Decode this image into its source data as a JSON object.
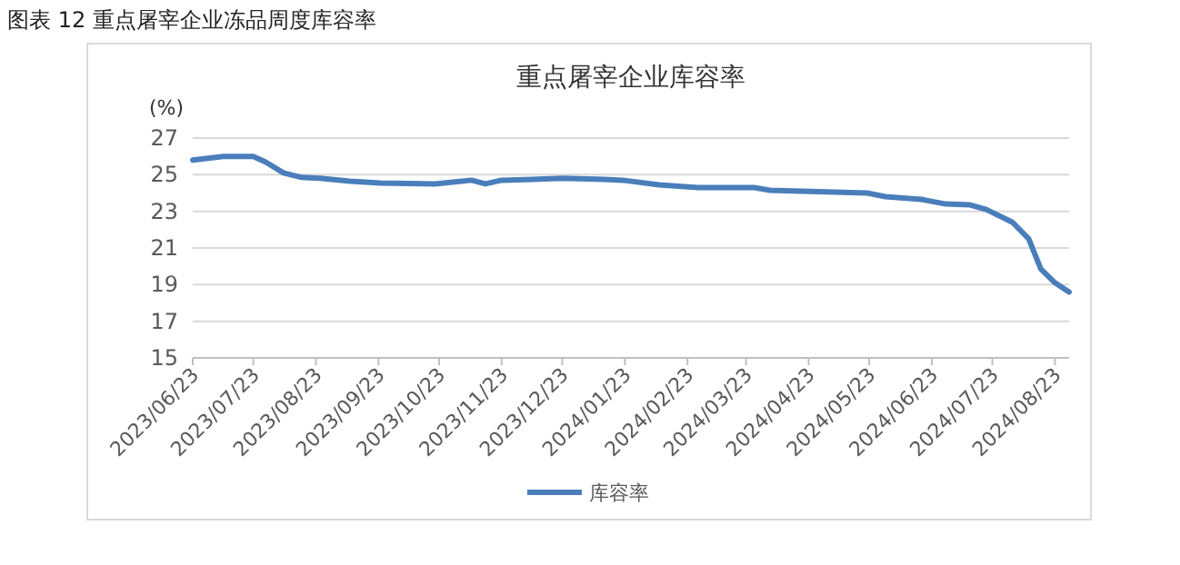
{
  "chart_data": {
    "type": "line",
    "title": "图表 12  重点屠宰企业冻品周度库容率",
    "subtitle": "重点屠宰企业库容率",
    "ylabel": "(%)",
    "xlim": [
      "2023-06-23",
      "2024-08-30"
    ],
    "xticks": [
      {
        "value": "2023-06-23",
        "label": "2023/06/23"
      },
      {
        "value": "2023-07-23",
        "label": "2023/07/23"
      },
      {
        "value": "2023-08-23",
        "label": "2023/08/23"
      },
      {
        "value": "2023-09-23",
        "label": "2023/09/23"
      },
      {
        "value": "2023-10-23",
        "label": "2023/10/23"
      },
      {
        "value": "2023-11-23",
        "label": "2023/11/23"
      },
      {
        "value": "2023-12-23",
        "label": "2023/12/23"
      },
      {
        "value": "2024-01-23",
        "label": "2024/01/23"
      },
      {
        "value": "2024-02-23",
        "label": "2024/02/23"
      },
      {
        "value": "2024-03-23",
        "label": "2024/03/23"
      },
      {
        "value": "2024-04-23",
        "label": "2024/04/23"
      },
      {
        "value": "2024-05-23",
        "label": "2024/05/23"
      },
      {
        "value": "2024-06-23",
        "label": "2024/06/23"
      },
      {
        "value": "2024-07-23",
        "label": "2024/07/23"
      },
      {
        "value": "2024-08-23",
        "label": "2024/08/23"
      }
    ],
    "ylim": [
      15,
      27
    ],
    "yticks": [
      15,
      17,
      19,
      21,
      23,
      25,
      27
    ],
    "grid": "y",
    "legend": "bottom",
    "marker": "none",
    "line_style": "solid",
    "x": [
      "2023-06-23",
      "2023-07-08",
      "2023-07-23",
      "2023-07-29",
      "2023-08-07",
      "2023-08-16",
      "2023-08-25",
      "2023-09-09",
      "2023-09-24",
      "2023-10-21",
      "2023-11-08",
      "2023-11-15",
      "2023-11-23",
      "2023-12-08",
      "2023-12-23",
      "2024-01-13",
      "2024-01-22",
      "2024-02-09",
      "2024-02-28",
      "2024-03-27",
      "2024-04-04",
      "2024-05-22",
      "2024-05-31",
      "2024-06-18",
      "2024-06-30",
      "2024-07-12",
      "2024-07-20",
      "2024-08-02",
      "2024-08-10",
      "2024-08-16",
      "2024-08-23",
      "2024-08-30"
    ],
    "series": [
      {
        "name": "库容率",
        "color": "#4a7ebb",
        "values": [
          25.8,
          26.0,
          26.0,
          25.7,
          25.1,
          24.85,
          24.8,
          24.65,
          24.55,
          24.5,
          24.7,
          24.5,
          24.7,
          24.75,
          24.8,
          24.75,
          24.7,
          24.45,
          24.3,
          24.3,
          24.15,
          24.0,
          23.8,
          23.65,
          23.4,
          23.35,
          23.1,
          22.4,
          21.5,
          19.85,
          19.1,
          18.6
        ]
      }
    ]
  }
}
